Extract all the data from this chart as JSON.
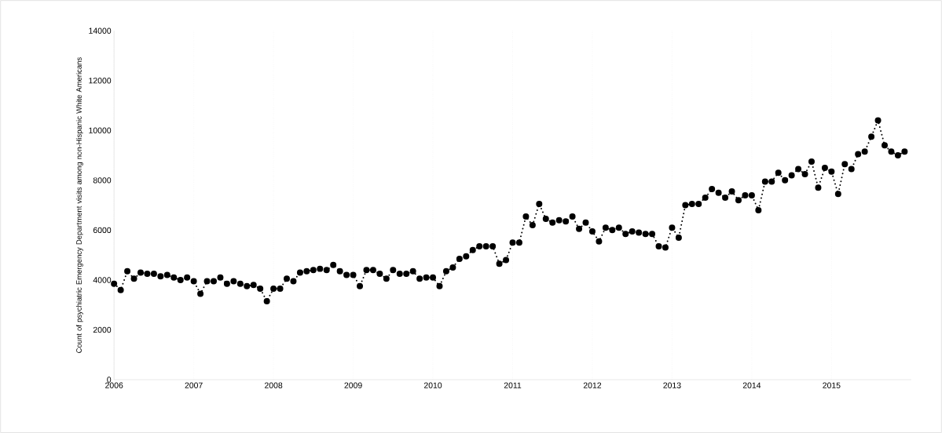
{
  "chart_data": {
    "type": "line",
    "ylabel": "Count of psychiatric Emergency Department visits among non-Hispanic White  Americans",
    "x": [
      "2006-01",
      "2006-02",
      "2006-03",
      "2006-04",
      "2006-05",
      "2006-06",
      "2006-07",
      "2006-08",
      "2006-09",
      "2006-10",
      "2006-11",
      "2006-12",
      "2007-01",
      "2007-02",
      "2007-03",
      "2007-04",
      "2007-05",
      "2007-06",
      "2007-07",
      "2007-08",
      "2007-09",
      "2007-10",
      "2007-11",
      "2007-12",
      "2008-01",
      "2008-02",
      "2008-03",
      "2008-04",
      "2008-05",
      "2008-06",
      "2008-07",
      "2008-08",
      "2008-09",
      "2008-10",
      "2008-11",
      "2008-12",
      "2009-01",
      "2009-02",
      "2009-03",
      "2009-04",
      "2009-05",
      "2009-06",
      "2009-07",
      "2009-08",
      "2009-09",
      "2009-10",
      "2009-11",
      "2009-12",
      "2010-01",
      "2010-02",
      "2010-03",
      "2010-04",
      "2010-05",
      "2010-06",
      "2010-07",
      "2010-08",
      "2010-09",
      "2010-10",
      "2010-11",
      "2010-12",
      "2011-01",
      "2011-02",
      "2011-03",
      "2011-04",
      "2011-05",
      "2011-06",
      "2011-07",
      "2011-08",
      "2011-09",
      "2011-10",
      "2011-11",
      "2011-12",
      "2012-01",
      "2012-02",
      "2012-03",
      "2012-04",
      "2012-05",
      "2012-06",
      "2012-07",
      "2012-08",
      "2012-09",
      "2012-10",
      "2012-11",
      "2012-12",
      "2013-01",
      "2013-02",
      "2013-03",
      "2013-04",
      "2013-05",
      "2013-06",
      "2013-07",
      "2013-08",
      "2013-09",
      "2013-10",
      "2013-11",
      "2013-12",
      "2014-01",
      "2014-02",
      "2014-03",
      "2014-04",
      "2014-05",
      "2014-06",
      "2014-07",
      "2014-08",
      "2014-09",
      "2014-10",
      "2014-11",
      "2014-12",
      "2015-01",
      "2015-02",
      "2015-03",
      "2015-04",
      "2015-05",
      "2015-06",
      "2015-07",
      "2015-08",
      "2015-09",
      "2015-10",
      "2015-11",
      "2015-12"
    ],
    "series": [
      {
        "color": "#000000",
        "values": [
          3850,
          3600,
          4350,
          4050,
          4300,
          4250,
          4250,
          4150,
          4200,
          4100,
          4000,
          4100,
          3950,
          3450,
          3950,
          3950,
          4100,
          3850,
          3950,
          3850,
          3750,
          3800,
          3650,
          3150,
          3650,
          3650,
          4050,
          3950,
          4300,
          4350,
          4400,
          4450,
          4400,
          4600,
          4350,
          4200,
          4200,
          3750,
          4400,
          4400,
          4250,
          4050,
          4400,
          4250,
          4250,
          4350,
          4050,
          4100,
          4100,
          3750,
          4350,
          4500,
          4850,
          4950,
          5200,
          5350,
          5350,
          5350,
          4650,
          4800,
          5500,
          5500,
          6550,
          6200,
          7050,
          6450,
          6300,
          6400,
          6350,
          6550,
          6050,
          6300,
          5950,
          5550,
          6100,
          6000,
          6100,
          5850,
          5950,
          5900,
          5850,
          5850,
          5350,
          5300,
          6100,
          5700,
          7000,
          7050,
          7050,
          7300,
          7650,
          7500,
          7300,
          7550,
          7200,
          7400,
          7400,
          6800,
          7950,
          7950,
          8300,
          8000,
          8200,
          8450,
          8250,
          8750,
          7700,
          8500,
          8350,
          7450,
          8650,
          8450,
          9050,
          9150,
          9750,
          10400,
          9400,
          9150,
          9000,
          9150
        ]
      }
    ],
    "xlim": [
      "2006-01",
      "2016-01"
    ],
    "xticks": [
      "2006",
      "2007",
      "2008",
      "2009",
      "2010",
      "2011",
      "2012",
      "2013",
      "2014",
      "2015"
    ],
    "ylim": [
      0,
      14000
    ],
    "yticks": [
      0,
      2000,
      4000,
      6000,
      8000,
      10000,
      12000,
      14000
    ],
    "grid": "x",
    "marker": "circle",
    "line_style": "dotted"
  }
}
